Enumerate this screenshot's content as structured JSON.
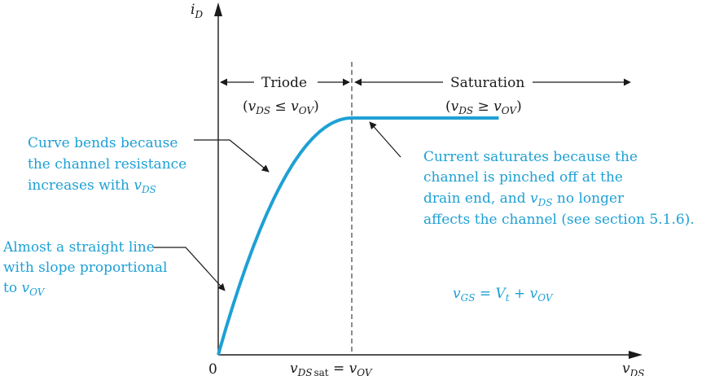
{
  "axes": {
    "y_label": {
      "main": "i",
      "sub": "D"
    },
    "x_label": {
      "main": "v",
      "sub": "DS"
    },
    "origin_label": "0",
    "x_tick": {
      "main": "v",
      "sub_italic": "DS",
      "sub_roman": "sat",
      "eq": " = ",
      "rhs_main": "v",
      "rhs_sub": "OV"
    }
  },
  "regions": {
    "triode": {
      "label": "Triode",
      "condition": {
        "open": "(",
        "lhs_main": "v",
        "lhs_sub": "DS",
        "op": " ≤ ",
        "rhs_main": "v",
        "rhs_sub": "OV",
        "close": ")"
      }
    },
    "saturation": {
      "label": "Saturation",
      "condition": {
        "open": "(",
        "lhs_main": "v",
        "lhs_sub": "DS",
        "op": " ≥ ",
        "rhs_main": "v",
        "rhs_sub": "OV",
        "close": ")"
      }
    }
  },
  "annotations": {
    "bend": {
      "line1": "Curve bends because",
      "line2": "the channel resistance",
      "line3": "increases with ",
      "line3_var_main": "v",
      "line3_var_sub": "DS"
    },
    "straight": {
      "line1": "Almost a straight line",
      "line2": "with slope proportional",
      "line3": "to ",
      "line3_var_main": "v",
      "line3_var_sub": "OV"
    },
    "saturate": {
      "line1": "Current saturates because the",
      "line2": "channel is pinched off at the",
      "line3_a": "drain end, and ",
      "line3_var_main": "v",
      "line3_var_sub": "DS",
      "line3_b": " no longer",
      "line4": "affects the channel (see section 5.1.6)."
    },
    "equation": {
      "lhs_main": "v",
      "lhs_sub": "GS",
      "eq": " = ",
      "vt_main": "V",
      "vt_sub": "t",
      "plus": " + ",
      "ov_main": "v",
      "ov_sub": "OV"
    }
  },
  "colors": {
    "curve": "#1ea0d5",
    "annotation_text": "#1ea0d5",
    "axes": "#1a1a1a"
  },
  "curve": {
    "x_sat": 1.0,
    "y_sat": 1.0,
    "x_max": 2.1,
    "shape": "square-law"
  }
}
